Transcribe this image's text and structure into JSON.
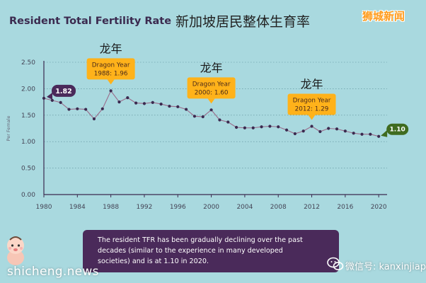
{
  "header": {
    "title_en": "Resident Total Fertility Rate",
    "title_zh": "新加坡居民整体生育率",
    "brand": "狮城新闻"
  },
  "chart_data": {
    "type": "line",
    "title": "Resident Total Fertility Rate",
    "ylabel": "Per Female",
    "xlabel": "",
    "xlim": [
      1980,
      2021
    ],
    "ylim": [
      0,
      2.5
    ],
    "grid": true,
    "x_ticks": [
      "1980",
      "1984",
      "1988",
      "1992",
      "1996",
      "2000",
      "2004",
      "2008",
      "2012",
      "2016",
      "2020"
    ],
    "y_ticks": [
      "0.00",
      "0.50",
      "1.00",
      "1.50",
      "2.00",
      "2.50"
    ],
    "color": "#3b2a4f",
    "x": [
      1980,
      1981,
      1982,
      1983,
      1984,
      1985,
      1986,
      1987,
      1988,
      1989,
      1990,
      1991,
      1992,
      1993,
      1994,
      1995,
      1996,
      1997,
      1998,
      1999,
      2000,
      2001,
      2002,
      2003,
      2004,
      2005,
      2006,
      2007,
      2008,
      2009,
      2010,
      2011,
      2012,
      2013,
      2014,
      2015,
      2016,
      2017,
      2018,
      2019,
      2020
    ],
    "values": [
      1.82,
      1.78,
      1.74,
      1.61,
      1.62,
      1.61,
      1.43,
      1.62,
      1.96,
      1.75,
      1.83,
      1.73,
      1.72,
      1.74,
      1.71,
      1.67,
      1.66,
      1.61,
      1.48,
      1.47,
      1.6,
      1.41,
      1.37,
      1.27,
      1.26,
      1.26,
      1.28,
      1.29,
      1.28,
      1.22,
      1.15,
      1.2,
      1.29,
      1.19,
      1.25,
      1.24,
      1.2,
      1.16,
      1.14,
      1.14,
      1.1
    ],
    "start_label": "1.82",
    "end_label": "1.10",
    "annotations": [
      {
        "year": 1988,
        "zh": "龙年",
        "label": "Dragon Year",
        "detail": "1988: 1.96"
      },
      {
        "year": 2000,
        "zh": "龙年",
        "label": "Dragon Year",
        "detail": "2000: 1.60"
      },
      {
        "year": 2012,
        "zh": "龙年",
        "label": "Dragon Year",
        "detail": "2012: 1.29"
      }
    ]
  },
  "note": {
    "lines": [
      "The resident TFR has been gradually declining over the past",
      "decades (similar to the experience in many developed",
      "societies) and is at 1.10 in 2020."
    ]
  },
  "watermark": {
    "left": "shicheng.news",
    "right": "微信号: kanxinjiapo"
  }
}
